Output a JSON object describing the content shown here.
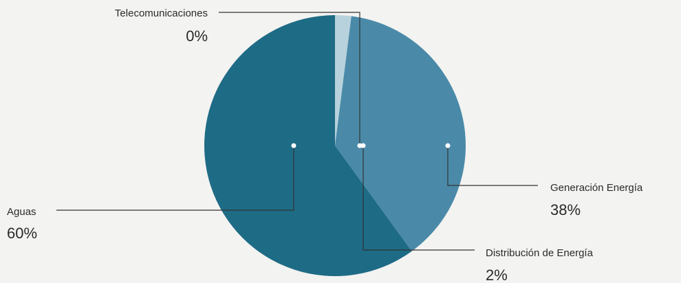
{
  "chart_data": {
    "type": "pie",
    "title": "",
    "slices": [
      {
        "label": "Aguas",
        "value": 60,
        "value_label": "60%",
        "color": "#1e6b86"
      },
      {
        "label": "Generación Energía",
        "value": 38,
        "value_label": "38%",
        "color": "#4a8aa8"
      },
      {
        "label": "Distribución de Energía",
        "value": 2,
        "value_label": "2%",
        "color": "#b8d2dd"
      },
      {
        "label": "Telecomunicaciones",
        "value": 0,
        "value_label": "0%",
        "color": "#ffffff"
      }
    ],
    "legend": "none (direct callout labels)"
  }
}
